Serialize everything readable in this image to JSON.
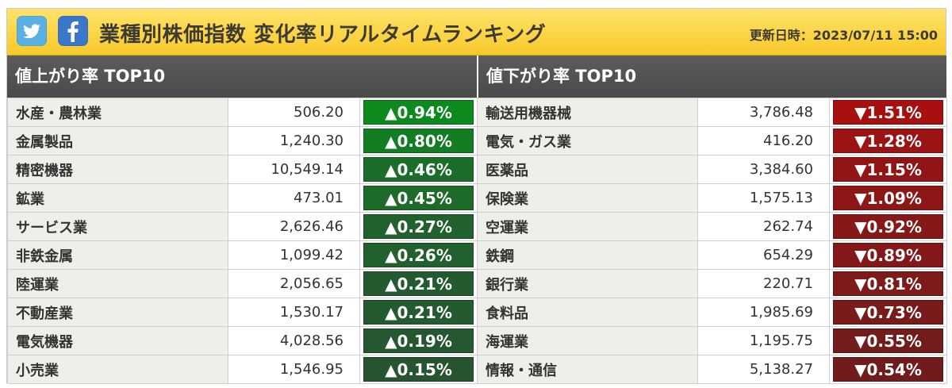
{
  "colors": {
    "up": [
      "#0c8a1e",
      "#137d23",
      "#1b6e29",
      "#1d6a2a",
      "#21612d",
      "#22602e",
      "#245a30",
      "#245a30",
      "#255830",
      "#265530"
    ],
    "down": [
      "#a80f0f",
      "#9b1313",
      "#921515",
      "#8d1717",
      "#861818",
      "#841818",
      "#7d1a1a",
      "#771b1b",
      "#721c1c",
      "#701c1c"
    ]
  },
  "header": {
    "icons": [
      "twitter-icon",
      "facebook-icon"
    ],
    "title": "業種別株価指数 変化率リアルタイムランキング",
    "updated": "更新日時：2023/07/11 15:00"
  },
  "gainers": {
    "title": "値上がり率 TOP10",
    "rows": [
      {
        "name": "水産・農林業",
        "value": "506.20",
        "change": "▲0.94%"
      },
      {
        "name": "金属製品",
        "value": "1,240.30",
        "change": "▲0.80%"
      },
      {
        "name": "精密機器",
        "value": "10,549.14",
        "change": "▲0.46%"
      },
      {
        "name": "鉱業",
        "value": "473.01",
        "change": "▲0.45%"
      },
      {
        "name": "サービス業",
        "value": "2,626.46",
        "change": "▲0.27%"
      },
      {
        "name": "非鉄金属",
        "value": "1,099.42",
        "change": "▲0.26%"
      },
      {
        "name": "陸運業",
        "value": "2,056.65",
        "change": "▲0.21%"
      },
      {
        "name": "不動産業",
        "value": "1,530.17",
        "change": "▲0.21%"
      },
      {
        "name": "電気機器",
        "value": "4,028.56",
        "change": "▲0.19%"
      },
      {
        "name": "小売業",
        "value": "1,546.95",
        "change": "▲0.15%"
      }
    ]
  },
  "losers": {
    "title": "値下がり率 TOP10",
    "rows": [
      {
        "name": "輸送用機器械",
        "value": "3,786.48",
        "change": "▼1.51%"
      },
      {
        "name": "電気・ガス業",
        "value": "416.20",
        "change": "▼1.28%"
      },
      {
        "name": "医薬品",
        "value": "3,384.60",
        "change": "▼1.15%"
      },
      {
        "name": "保険業",
        "value": "1,575.13",
        "change": "▼1.09%"
      },
      {
        "name": "空運業",
        "value": "262.74",
        "change": "▼0.92%"
      },
      {
        "name": "鉄鋼",
        "value": "654.29",
        "change": "▼0.89%"
      },
      {
        "name": "銀行業",
        "value": "220.71",
        "change": "▼0.81%"
      },
      {
        "name": "食料品",
        "value": "1,985.69",
        "change": "▼0.73%"
      },
      {
        "name": "海運業",
        "value": "1,195.75",
        "change": "▼0.55%"
      },
      {
        "name": "情報・通信",
        "value": "5,138.27",
        "change": "▼0.54%"
      }
    ]
  }
}
